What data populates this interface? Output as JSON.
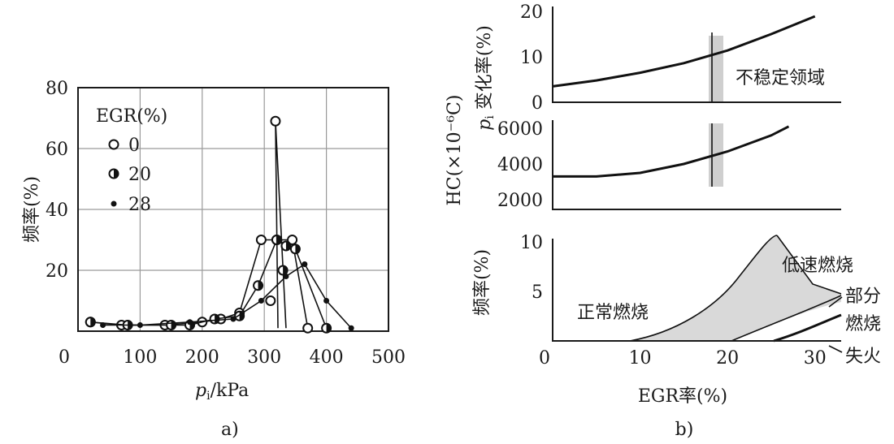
{
  "chart_data": [
    {
      "type": "line",
      "panel_label": "a)",
      "xlabel_var": "p",
      "xlabel_sub": "i",
      "xlabel_unit": "/kPa",
      "ylabel": "频率(%)",
      "xlim": [
        0,
        500
      ],
      "ylim": [
        0,
        80
      ],
      "xticks": [
        "0",
        "100",
        "200",
        "300",
        "400",
        "500"
      ],
      "yticks": [
        "20",
        "40",
        "60",
        "80"
      ],
      "legend_title": "EGR(%)",
      "series": [
        {
          "name": "0",
          "marker": "open",
          "x": [
            20,
            70,
            140,
            200,
            230,
            260,
            295,
            320,
            345,
            370
          ],
          "y": [
            3,
            2,
            2,
            3,
            4,
            6,
            30,
            30,
            30,
            1
          ]
        },
        {
          "name": "20",
          "marker": "half",
          "x": [
            20,
            80,
            150,
            180,
            220,
            260,
            290,
            320,
            335,
            350,
            400
          ],
          "y": [
            3,
            2,
            2,
            2,
            4,
            5,
            15,
            30,
            28,
            27,
            1
          ]
        },
        {
          "name": "28",
          "marker": "dot",
          "x": [
            40,
            100,
            180,
            250,
            295,
            335,
            365,
            400,
            440
          ],
          "y": [
            2,
            2,
            3,
            4,
            10,
            18,
            22,
            10,
            1
          ]
        }
      ],
      "annotation_points": [
        {
          "x": 318,
          "y": 69
        },
        {
          "x": 330,
          "y": 20
        },
        {
          "x": 310,
          "y": 10
        }
      ]
    },
    {
      "type": "line",
      "panel_label": "b)",
      "ylabel_top_var": "p",
      "ylabel_top_sub": "i",
      "ylabel_top_rest": " 变化率(%)",
      "ylabel_mid": "HC(×10⁻⁶C)",
      "ylabel_bottom": "频率(%)",
      "xlabel": "EGR率(%)",
      "xlim": [
        0,
        33
      ],
      "xticks": [
        "0",
        "10",
        "20",
        "30"
      ],
      "top": {
        "ylim": [
          0,
          20
        ],
        "yticks": [
          "0",
          "10",
          "20"
        ],
        "x": [
          0,
          5,
          10,
          15,
          20,
          25,
          30
        ],
        "y": [
          3.5,
          4.8,
          6.5,
          8.6,
          11.4,
          15.0,
          18.9
        ],
        "annotation": "不稳定领域"
      },
      "middle": {
        "ylim": [
          2000,
          6000
        ],
        "yticks": [
          "2000",
          "4000",
          "6000"
        ],
        "x": [
          0,
          5,
          10,
          15,
          20,
          25,
          27
        ],
        "y": [
          3300,
          3300,
          3500,
          4000,
          4700,
          5600,
          6100
        ]
      },
      "bottom": {
        "ylim": [
          0,
          10
        ],
        "yticks": [
          "5",
          "10"
        ],
        "region_labels": [
          "正常燃烧",
          "低速燃烧",
          "部分",
          "燃烧",
          "失火"
        ]
      },
      "unstable_x": 18
    }
  ]
}
